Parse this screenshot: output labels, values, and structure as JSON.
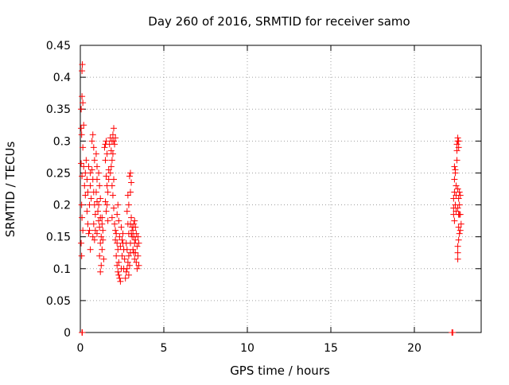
{
  "chart_data": {
    "type": "scatter",
    "title": "Day 260 of 2016, SRMTID for receiver samo",
    "xlabel": "GPS time / hours",
    "ylabel": "SRMTID / TECUs",
    "xlim": [
      0,
      24
    ],
    "ylim": [
      0,
      0.45
    ],
    "x_ticks": [
      0,
      5,
      10,
      15,
      20
    ],
    "y_ticks": [
      0,
      0.05,
      0.1,
      0.15,
      0.2,
      0.25,
      0.3,
      0.35,
      0.4,
      0.45
    ],
    "grid": true,
    "marker": "+",
    "color": "#ff0000",
    "points": [
      [
        0.05,
        0.35
      ],
      [
        0.1,
        0.37
      ],
      [
        0.1,
        0.41
      ],
      [
        0.12,
        0.42
      ],
      [
        0.15,
        0.36
      ],
      [
        0.05,
        0.32
      ],
      [
        0.08,
        0.31
      ],
      [
        0.2,
        0.325
      ],
      [
        0.15,
        0.29
      ],
      [
        0.05,
        0.265
      ],
      [
        0.1,
        0.245
      ],
      [
        0.2,
        0.26
      ],
      [
        0.25,
        0.23
      ],
      [
        0.3,
        0.215
      ],
      [
        0.08,
        0.2
      ],
      [
        0.1,
        0.18
      ],
      [
        0.15,
        0.16
      ],
      [
        0.05,
        0.14
      ],
      [
        0.08,
        0.12
      ],
      [
        0.1,
        0.0
      ],
      [
        0.12,
        0.0
      ],
      [
        0.3,
        0.25
      ],
      [
        0.35,
        0.27
      ],
      [
        0.4,
        0.24
      ],
      [
        0.45,
        0.22
      ],
      [
        0.5,
        0.26
      ],
      [
        0.4,
        0.19
      ],
      [
        0.45,
        0.17
      ],
      [
        0.5,
        0.155
      ],
      [
        0.55,
        0.2
      ],
      [
        0.6,
        0.25
      ],
      [
        0.6,
        0.23
      ],
      [
        0.65,
        0.21
      ],
      [
        0.55,
        0.16
      ],
      [
        0.6,
        0.13
      ],
      [
        0.7,
        0.3
      ],
      [
        0.75,
        0.31
      ],
      [
        0.8,
        0.29
      ],
      [
        0.85,
        0.27
      ],
      [
        0.7,
        0.255
      ],
      [
        0.75,
        0.24
      ],
      [
        0.8,
        0.22
      ],
      [
        0.85,
        0.2
      ],
      [
        0.9,
        0.185
      ],
      [
        0.8,
        0.17
      ],
      [
        0.75,
        0.15
      ],
      [
        0.85,
        0.145
      ],
      [
        0.9,
        0.16
      ],
      [
        0.95,
        0.28
      ],
      [
        1.0,
        0.26
      ],
      [
        1.0,
        0.24
      ],
      [
        0.95,
        0.22
      ],
      [
        1.0,
        0.205
      ],
      [
        1.05,
        0.19
      ],
      [
        1.1,
        0.175
      ],
      [
        1.0,
        0.155
      ],
      [
        1.1,
        0.25
      ],
      [
        1.15,
        0.23
      ],
      [
        1.2,
        0.21
      ],
      [
        1.1,
        0.2
      ],
      [
        1.2,
        0.18
      ],
      [
        1.15,
        0.165
      ],
      [
        1.25,
        0.15
      ],
      [
        1.2,
        0.14
      ],
      [
        1.15,
        0.12
      ],
      [
        1.25,
        0.105
      ],
      [
        1.2,
        0.095
      ],
      [
        1.3,
        0.17
      ],
      [
        1.3,
        0.13
      ],
      [
        1.35,
        0.16
      ],
      [
        1.35,
        0.145
      ],
      [
        1.4,
        0.115
      ],
      [
        1.3,
        0.18
      ],
      [
        1.45,
        0.29
      ],
      [
        1.5,
        0.295
      ],
      [
        1.55,
        0.3
      ],
      [
        1.6,
        0.28
      ],
      [
        1.5,
        0.27
      ],
      [
        1.55,
        0.245
      ],
      [
        1.6,
        0.23
      ],
      [
        1.65,
        0.22
      ],
      [
        1.5,
        0.205
      ],
      [
        1.55,
        0.19
      ],
      [
        1.6,
        0.2
      ],
      [
        1.7,
        0.24
      ],
      [
        1.7,
        0.255
      ],
      [
        1.65,
        0.175
      ],
      [
        1.75,
        0.295
      ],
      [
        1.8,
        0.305
      ],
      [
        1.85,
        0.285
      ],
      [
        1.9,
        0.3
      ],
      [
        1.95,
        0.31
      ],
      [
        2.0,
        0.32
      ],
      [
        2.0,
        0.3
      ],
      [
        1.95,
        0.28
      ],
      [
        1.9,
        0.27
      ],
      [
        1.85,
        0.26
      ],
      [
        1.8,
        0.25
      ],
      [
        1.9,
        0.23
      ],
      [
        2.0,
        0.24
      ],
      [
        2.05,
        0.295
      ],
      [
        2.1,
        0.305
      ],
      [
        1.95,
        0.215
      ],
      [
        2.0,
        0.195
      ],
      [
        2.05,
        0.17
      ],
      [
        2.1,
        0.16
      ],
      [
        1.9,
        0.18
      ],
      [
        2.1,
        0.145
      ],
      [
        2.15,
        0.155
      ],
      [
        2.2,
        0.14
      ],
      [
        2.25,
        0.13
      ],
      [
        2.15,
        0.12
      ],
      [
        2.2,
        0.105
      ],
      [
        2.3,
        0.11
      ],
      [
        2.25,
        0.095
      ],
      [
        2.35,
        0.085
      ],
      [
        2.4,
        0.08
      ],
      [
        2.3,
        0.09
      ],
      [
        2.45,
        0.1
      ],
      [
        2.5,
        0.12
      ],
      [
        2.4,
        0.135
      ],
      [
        2.35,
        0.15
      ],
      [
        2.5,
        0.145
      ],
      [
        2.55,
        0.155
      ],
      [
        2.45,
        0.165
      ],
      [
        2.3,
        0.175
      ],
      [
        2.2,
        0.185
      ],
      [
        2.25,
        0.2
      ],
      [
        2.6,
        0.1
      ],
      [
        2.65,
        0.115
      ],
      [
        2.6,
        0.13
      ],
      [
        2.55,
        0.14
      ],
      [
        2.7,
        0.085
      ],
      [
        2.75,
        0.095
      ],
      [
        2.8,
        0.1
      ],
      [
        2.85,
        0.11
      ],
      [
        2.9,
        0.12
      ],
      [
        2.8,
        0.13
      ],
      [
        2.75,
        0.14
      ],
      [
        2.9,
        0.09
      ],
      [
        2.95,
        0.105
      ],
      [
        3.0,
        0.125
      ],
      [
        3.0,
        0.14
      ],
      [
        3.05,
        0.155
      ],
      [
        3.1,
        0.165
      ],
      [
        3.0,
        0.17
      ],
      [
        3.05,
        0.18
      ],
      [
        3.1,
        0.15
      ],
      [
        3.15,
        0.13
      ],
      [
        2.9,
        0.155
      ],
      [
        2.85,
        0.17
      ],
      [
        2.8,
        0.19
      ],
      [
        2.9,
        0.2
      ],
      [
        3.0,
        0.22
      ],
      [
        3.05,
        0.235
      ],
      [
        3.0,
        0.25
      ],
      [
        2.95,
        0.245
      ],
      [
        2.85,
        0.215
      ],
      [
        3.15,
        0.16
      ],
      [
        3.2,
        0.17
      ],
      [
        3.25,
        0.175
      ],
      [
        3.2,
        0.15
      ],
      [
        3.25,
        0.14
      ],
      [
        3.3,
        0.145
      ],
      [
        3.35,
        0.155
      ],
      [
        3.3,
        0.125
      ],
      [
        3.35,
        0.11
      ],
      [
        3.4,
        0.1
      ],
      [
        3.45,
        0.12
      ],
      [
        3.4,
        0.135
      ],
      [
        3.45,
        0.15
      ],
      [
        3.5,
        0.14
      ],
      [
        3.5,
        0.105
      ],
      [
        3.3,
        0.165
      ],
      [
        3.25,
        0.115
      ],
      [
        3.2,
        0.125
      ],
      [
        22.25,
        0.0
      ],
      [
        22.3,
        0.0
      ],
      [
        22.35,
        0.195
      ],
      [
        22.35,
        0.21
      ],
      [
        22.4,
        0.22
      ],
      [
        22.4,
        0.24
      ],
      [
        22.45,
        0.25
      ],
      [
        22.4,
        0.26
      ],
      [
        22.45,
        0.255
      ],
      [
        22.35,
        0.185
      ],
      [
        22.4,
        0.175
      ],
      [
        22.45,
        0.2
      ],
      [
        22.5,
        0.23
      ],
      [
        22.5,
        0.215
      ],
      [
        22.5,
        0.19
      ],
      [
        22.55,
        0.295
      ],
      [
        22.6,
        0.3
      ],
      [
        22.55,
        0.285
      ],
      [
        22.6,
        0.305
      ],
      [
        22.65,
        0.3
      ],
      [
        22.65,
        0.29
      ],
      [
        22.55,
        0.27
      ],
      [
        22.6,
        0.225
      ],
      [
        22.65,
        0.21
      ],
      [
        22.6,
        0.195
      ],
      [
        22.65,
        0.185
      ],
      [
        22.7,
        0.2
      ],
      [
        22.7,
        0.22
      ],
      [
        22.75,
        0.215
      ],
      [
        22.7,
        0.185
      ],
      [
        22.65,
        0.165
      ],
      [
        22.7,
        0.155
      ],
      [
        22.65,
        0.145
      ],
      [
        22.6,
        0.135
      ],
      [
        22.6,
        0.125
      ],
      [
        22.6,
        0.115
      ],
      [
        22.75,
        0.16
      ],
      [
        22.8,
        0.17
      ],
      [
        22.75,
        0.185
      ]
    ]
  }
}
